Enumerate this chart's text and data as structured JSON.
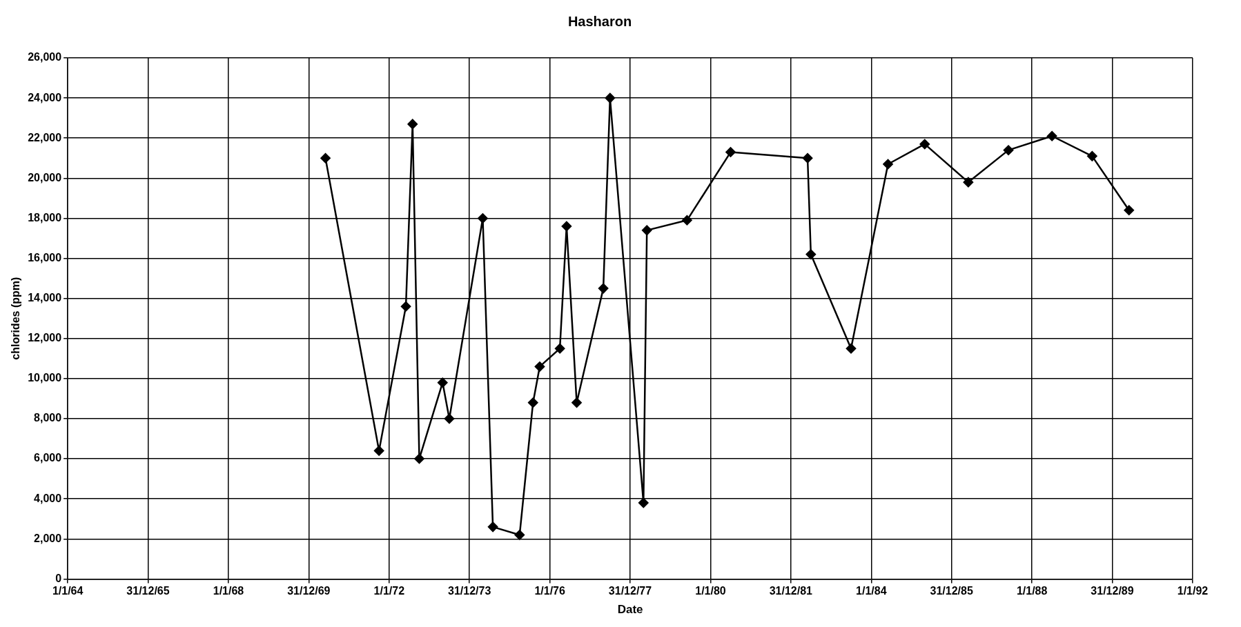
{
  "chart_data": {
    "type": "line",
    "title": "Hasharon",
    "xlabel": "Date",
    "ylabel": "chlorides (ppm)",
    "x": [
      "1970-06",
      "1971-10",
      "1972-06",
      "1972-08",
      "1972-10",
      "1973-05",
      "1973-07",
      "1974-05",
      "1974-08",
      "1975-04",
      "1975-08",
      "1975-10",
      "1976-04",
      "1976-06",
      "1976-09",
      "1977-05",
      "1977-07",
      "1978-05",
      "1978-06",
      "1979-06",
      "1980-07",
      "1982-06",
      "1982-07",
      "1983-07",
      "1984-06",
      "1985-05",
      "1986-06",
      "1987-06",
      "1988-07",
      "1989-07",
      "1990-06"
    ],
    "series": [
      {
        "color": "#000000",
        "values": [
          21000,
          6400,
          13600,
          22700,
          6000,
          9800,
          8000,
          18000,
          2600,
          2200,
          8800,
          10600,
          11500,
          17600,
          8800,
          14500,
          24000,
          3800,
          17400,
          17900,
          21300,
          21000,
          16200,
          11500,
          20700,
          21700,
          19800,
          21400,
          22100,
          21100,
          18400
        ]
      }
    ],
    "xlim": [
      "1964-01-01",
      "1992-01-01"
    ],
    "xticks": [
      {
        "value": "1964-01-01",
        "label": "1/1/64"
      },
      {
        "value": "1965-12-31",
        "label": "31/12/65"
      },
      {
        "value": "1968-01-01",
        "label": "1/1/68"
      },
      {
        "value": "1969-12-31",
        "label": "31/12/69"
      },
      {
        "value": "1972-01-01",
        "label": "1/1/72"
      },
      {
        "value": "1973-12-31",
        "label": "31/12/73"
      },
      {
        "value": "1976-01-01",
        "label": "1/1/76"
      },
      {
        "value": "1977-12-31",
        "label": "31/12/77"
      },
      {
        "value": "1980-01-01",
        "label": "1/1/80"
      },
      {
        "value": "1981-12-31",
        "label": "31/12/81"
      },
      {
        "value": "1984-01-01",
        "label": "1/1/84"
      },
      {
        "value": "1985-12-31",
        "label": "31/12/85"
      },
      {
        "value": "1988-01-01",
        "label": "1/1/88"
      },
      {
        "value": "1989-12-31",
        "label": "31/12/89"
      },
      {
        "value": "1992-01-01",
        "label": "1/1/92"
      }
    ],
    "ylim": [
      0,
      26000
    ],
    "yticks": [
      {
        "value": 0,
        "label": "0"
      },
      {
        "value": 2000,
        "label": "2,000"
      },
      {
        "value": 4000,
        "label": "4,000"
      },
      {
        "value": 6000,
        "label": "6,000"
      },
      {
        "value": 8000,
        "label": "8,000"
      },
      {
        "value": 10000,
        "label": "10,000"
      },
      {
        "value": 12000,
        "label": "12,000"
      },
      {
        "value": 14000,
        "label": "14,000"
      },
      {
        "value": 16000,
        "label": "16,000"
      },
      {
        "value": 18000,
        "label": "18,000"
      },
      {
        "value": 20000,
        "label": "20,000"
      },
      {
        "value": 22000,
        "label": "22,000"
      },
      {
        "value": 24000,
        "label": "24,000"
      },
      {
        "value": 26000,
        "label": "26,000"
      }
    ],
    "grid": true,
    "legend": false,
    "marker": "diamond",
    "line_style": "solid"
  }
}
